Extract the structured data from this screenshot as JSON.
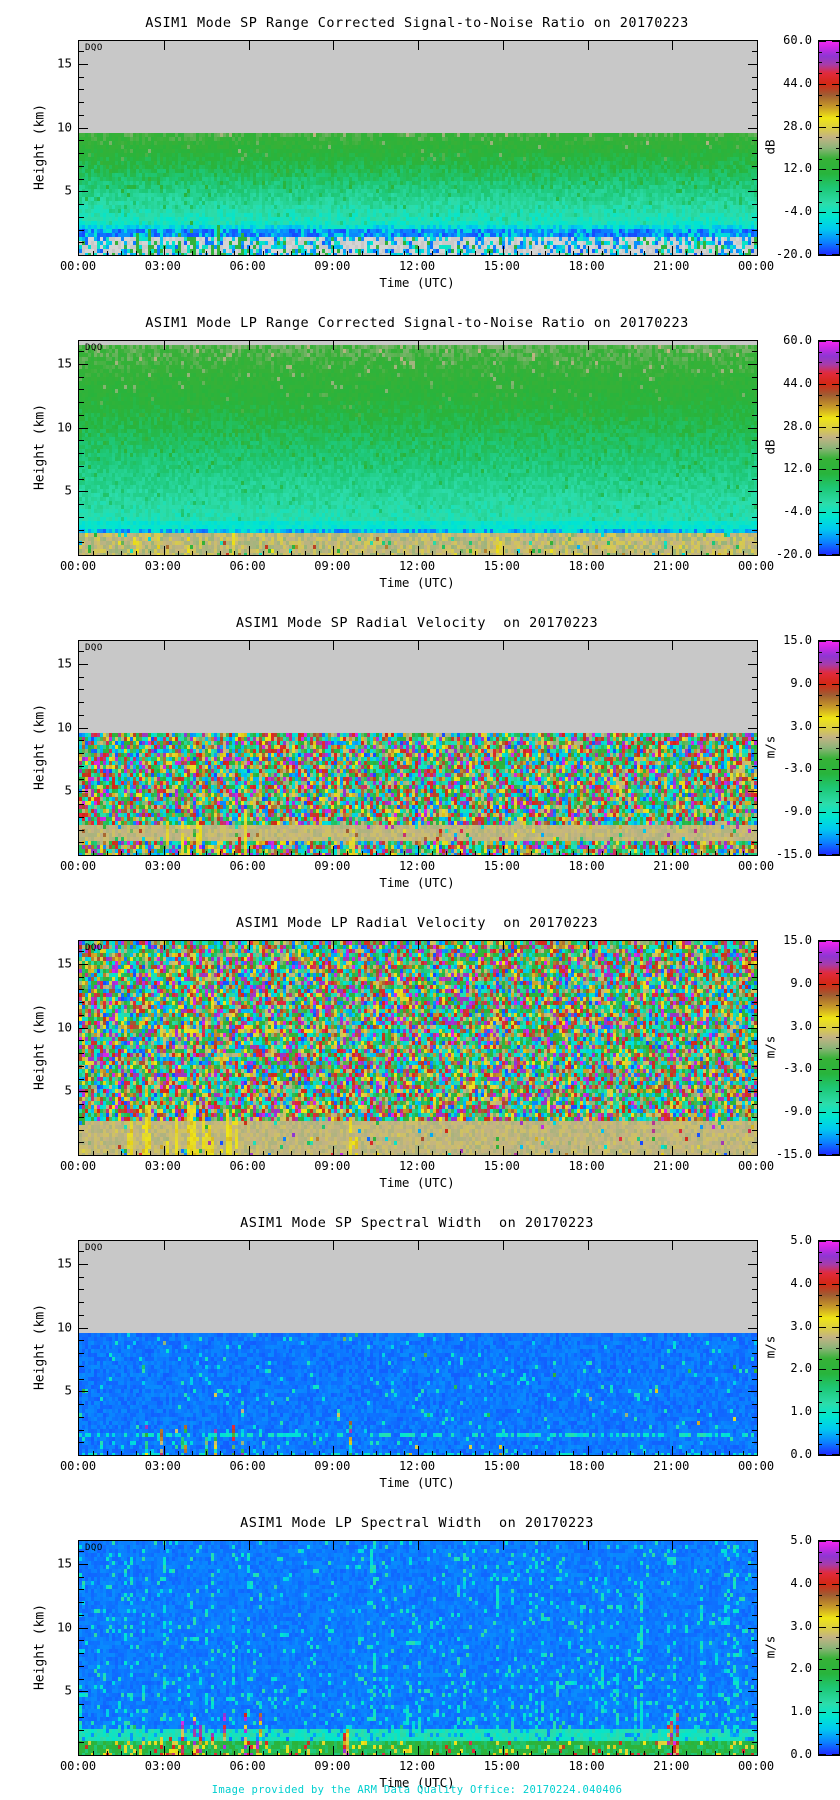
{
  "footer": {
    "credit": "Image provided by the ARM Data Quality Office: 20170224.040406",
    "color": "#00cfcf"
  },
  "shared": {
    "ylabel": "Height (km)",
    "xlabel": "Time (UTC)",
    "dqo": "DQO",
    "x_ticks": [
      "00:00",
      "03:00",
      "06:00",
      "09:00",
      "12:00",
      "15:00",
      "18:00",
      "21:00",
      "00:00"
    ],
    "y_ticks": [
      {
        "km": 15,
        "label": "15"
      },
      {
        "km": 10,
        "label": "10"
      },
      {
        "km": 5,
        "label": "5"
      }
    ],
    "y_max_km": 16.8,
    "nodata_gray": "#c8c8c8",
    "colormap_stops": [
      [
        0.0,
        "#1e28ff"
      ],
      [
        0.06,
        "#0a82ff"
      ],
      [
        0.12,
        "#00c8f0"
      ],
      [
        0.18,
        "#00e6d0"
      ],
      [
        0.24,
        "#2cdcaa"
      ],
      [
        0.31,
        "#1ec878"
      ],
      [
        0.38,
        "#28b43c"
      ],
      [
        0.45,
        "#37b137"
      ],
      [
        0.5,
        "#8cb478"
      ],
      [
        0.55,
        "#c3b384"
      ],
      [
        0.6,
        "#ddd23c"
      ],
      [
        0.64,
        "#f0e614"
      ],
      [
        0.69,
        "#c89c28"
      ],
      [
        0.75,
        "#a05a32"
      ],
      [
        0.8,
        "#d42814"
      ],
      [
        0.85,
        "#e12a3c"
      ],
      [
        0.89,
        "#a73caa"
      ],
      [
        0.93,
        "#8f35d4"
      ],
      [
        0.97,
        "#cd28e6"
      ],
      [
        1.0,
        "#f228f2"
      ]
    ]
  },
  "panels": [
    {
      "title": "ASIM1 Mode SP Range Corrected Signal-to-Noise Ratio on 20170223",
      "unit": "dB",
      "cbar_labels": [
        "60.0",
        "44.0",
        "28.0",
        "12.0",
        "-4.0",
        "-20.0"
      ],
      "paint": "snr_sp",
      "render": {
        "gray_above_km": 9.5,
        "grad_top_km": 9.5,
        "grad_bot_km": 2.4,
        "blue_band": [
          1.3,
          2.15
        ],
        "ground_band": [
          0,
          1.3
        ],
        "streak_hours": [
          [
            1.9,
            6.3,
            0.22
          ],
          [
            9.4,
            9.8,
            0.3
          ],
          [
            14.8,
            15.1,
            0.3
          ]
        ],
        "streak_min_km": 0.9,
        "streak_span_km": 2.4
      }
    },
    {
      "title": "ASIM1 Mode LP Range Corrected Signal-to-Noise Ratio on 20170223",
      "unit": "dB",
      "cbar_labels": [
        "60.0",
        "44.0",
        "28.0",
        "12.0",
        "-4.0",
        "-20.0"
      ],
      "paint": "snr_lp",
      "render": {
        "gray_top_km": 16.45,
        "grad_top_km": 16.4,
        "grad_bot_km": 2.6,
        "cyan_band": [
          2.1,
          2.6
        ],
        "blue_band": [
          1.7,
          2.1
        ],
        "tan_band": [
          0,
          1.7
        ],
        "streak_hours": [
          [
            0.9,
            5.6,
            0.3
          ],
          [
            14.7,
            15.0,
            0.4
          ]
        ],
        "streak_min_km": 0.6,
        "streak_span_km": 1.4
      }
    },
    {
      "title": "ASIM1 Mode SP Radial Velocity  on 20170223",
      "unit": "m/s",
      "cbar_labels": [
        "15.0",
        "9.0",
        "3.0",
        "-3.0",
        "-9.0",
        "-15.0"
      ],
      "paint": "vel_sp",
      "render": {
        "gray_above_km": 9.5,
        "tan_band": [
          0.95,
          2.35
        ],
        "streak_hours": [
          [
            1.9,
            6.3,
            0.22
          ],
          [
            9.4,
            9.9,
            0.25
          ]
        ],
        "streak_min_km": 1.0,
        "streak_span_km": 2.2
      }
    },
    {
      "title": "ASIM1 Mode LP Radial Velocity  on 20170223",
      "unit": "m/s",
      "cbar_labels": [
        "15.0",
        "9.0",
        "3.0",
        "-3.0",
        "-9.0",
        "-15.0"
      ],
      "paint": "vel_lp",
      "render": {
        "tan_band": [
          0,
          2.55
        ],
        "streak_hours": [
          [
            1.4,
            6.5,
            0.28
          ],
          [
            9.3,
            9.9,
            0.35
          ],
          [
            14.8,
            15.2,
            0.4
          ]
        ],
        "streak_min_km": 1.2,
        "streak_span_km": 3.0
      }
    },
    {
      "title": "ASIM1 Mode SP Spectral Width  on 20170223",
      "unit": "m/s",
      "cbar_labels": [
        "5.0",
        "4.0",
        "3.0",
        "2.0",
        "1.0",
        "0.0"
      ],
      "paint": "sw_sp",
      "render": {
        "gray_above_km": 9.5,
        "cyan_band": [
          1.35,
          1.8
        ],
        "streak_hours": [
          [
            2.3,
            6.2,
            0.3
          ],
          [
            9.4,
            9.8,
            0.35
          ],
          [
            14.9,
            15.2,
            0.35
          ]
        ],
        "streak_min_km": 0.5,
        "streak_span_km": 2.3
      }
    },
    {
      "title": "ASIM1 Mode LP Spectral Width  on 20170223",
      "unit": "m/s",
      "cbar_labels": [
        "5.0",
        "4.0",
        "3.0",
        "2.0",
        "1.0",
        "0.0"
      ],
      "paint": "sw_lp",
      "render": {
        "cyan_band": [
          1.15,
          2.0
        ],
        "ground_band": [
          0,
          1.15
        ],
        "streak_hours": [
          [
            2.3,
            6.5,
            0.28
          ],
          [
            9.3,
            10.1,
            0.3
          ],
          [
            14.2,
            14.7,
            0.2
          ],
          [
            20.7,
            21.3,
            0.3
          ]
        ],
        "streak_min_km": 0.8,
        "streak_span_km": 2.6
      }
    }
  ],
  "chart_data": [
    {
      "type": "heatmap",
      "title": "ASIM1 Mode SP Range Corrected Signal-to-Noise Ratio on 20170223",
      "xlabel": "Time (UTC)",
      "ylabel": "Height (km)",
      "x_range_hours": [
        0,
        24
      ],
      "x_ticks": [
        "00:00",
        "03:00",
        "06:00",
        "09:00",
        "12:00",
        "15:00",
        "18:00",
        "21:00",
        "00:00"
      ],
      "y_range_km": [
        0,
        16.8
      ],
      "y_ticks_km": [
        5,
        10,
        15
      ],
      "colorbar": {
        "unit": "dB",
        "range": [
          -20,
          60
        ],
        "ticks": [
          60.0,
          44.0,
          28.0,
          12.0,
          -4.0,
          -20.0
        ]
      },
      "features": [
        "no data (gray) above ~9.5 km",
        "SNR ~5-10 dB (green) near 9 km decreasing to cyan (~-8 dB) by 3 km",
        "dark blue band (~-18 dB) at 1.3-2.2 km",
        "gray/noise surface band below 1.3 km",
        "green plume echoes between 02:00 and 06:00 up to ~3 km"
      ]
    },
    {
      "type": "heatmap",
      "title": "ASIM1 Mode LP Range Corrected Signal-to-Noise Ratio on 20170223",
      "xlabel": "Time (UTC)",
      "ylabel": "Height (km)",
      "x_range_hours": [
        0,
        24
      ],
      "x_ticks": [
        "00:00",
        "03:00",
        "06:00",
        "09:00",
        "12:00",
        "15:00",
        "18:00",
        "21:00",
        "00:00"
      ],
      "y_range_km": [
        0,
        16.8
      ],
      "y_ticks_km": [
        5,
        10,
        15
      ],
      "colorbar": {
        "unit": "dB",
        "range": [
          -20,
          60
        ],
        "ticks": [
          60.0,
          44.0,
          28.0,
          12.0,
          -4.0,
          -20.0
        ]
      },
      "features": [
        "data over full height",
        "~8 dB green aloft grading to cyan below 4 km",
        "blue line near 1.9 km",
        "tan/khaki surface layer (~20 dB) below 1.7 km",
        "orange-yellow surface plumes 01:00-05:30"
      ]
    },
    {
      "type": "heatmap",
      "title": "ASIM1 Mode SP Radial Velocity  on 20170223",
      "xlabel": "Time (UTC)",
      "ylabel": "Height (km)",
      "x_range_hours": [
        0,
        24
      ],
      "x_ticks": [
        "00:00",
        "03:00",
        "06:00",
        "09:00",
        "12:00",
        "15:00",
        "18:00",
        "21:00",
        "00:00"
      ],
      "y_range_km": [
        0,
        16.8
      ],
      "y_ticks_km": [
        5,
        10,
        15
      ],
      "colorbar": {
        "unit": "m/s",
        "range": [
          -15,
          15
        ],
        "ticks": [
          15.0,
          9.0,
          3.0,
          -3.0,
          -9.0,
          -15.0
        ],
        "midpoint": 0
      },
      "features": [
        "no data (gray) above ~9.5 km",
        "uncorrelated rainbow velocity noise below 9.5 km",
        "near-zero (tan) band 1-2.3 km",
        "yellow (~+4 m/s) plumes 02:00-06:00"
      ]
    },
    {
      "type": "heatmap",
      "title": "ASIM1 Mode LP Radial Velocity  on 20170223",
      "xlabel": "Time (UTC)",
      "ylabel": "Height (km)",
      "x_range_hours": [
        0,
        24
      ],
      "x_ticks": [
        "00:00",
        "03:00",
        "06:00",
        "09:00",
        "12:00",
        "15:00",
        "18:00",
        "21:00",
        "00:00"
      ],
      "y_range_km": [
        0,
        16.8
      ],
      "y_ticks_km": [
        5,
        10,
        15
      ],
      "colorbar": {
        "unit": "m/s",
        "range": [
          -15,
          15
        ],
        "ticks": [
          15.0,
          9.0,
          3.0,
          -3.0,
          -9.0,
          -15.0
        ],
        "midpoint": 0
      },
      "features": [
        "rainbow velocity noise over full height",
        "near-zero (tan) layer below ~2.5 km",
        "yellow updraft plumes 01:30-06:30, near 09:30 and 15:00"
      ]
    },
    {
      "type": "heatmap",
      "title": "ASIM1 Mode SP Spectral Width  on 20170223",
      "xlabel": "Time (UTC)",
      "ylabel": "Height (km)",
      "x_range_hours": [
        0,
        24
      ],
      "y_range_km": [
        0,
        16.8
      ],
      "y_ticks_km": [
        5,
        10,
        15
      ],
      "x_ticks": [
        "00:00",
        "03:00",
        "06:00",
        "09:00",
        "12:00",
        "15:00",
        "18:00",
        "21:00",
        "00:00"
      ],
      "colorbar": {
        "unit": "m/s",
        "range": [
          0,
          5
        ],
        "ticks": [
          5.0,
          4.0,
          3.0,
          2.0,
          1.0,
          0.0
        ]
      },
      "features": [
        "no data (gray) above ~9.5 km",
        "spectral width ~0.2 m/s (blue) with sparse cyan speckles",
        "cyan speckled line near 1.5 km",
        "multicolor turbulent plumes 02:30-06:00, near 09:30 and 15:00"
      ]
    },
    {
      "type": "heatmap",
      "title": "ASIM1 Mode LP Spectral Width  on 20170223",
      "xlabel": "Time (UTC)",
      "ylabel": "Height (km)",
      "x_range_hours": [
        0,
        24
      ],
      "y_range_km": [
        0,
        16.8
      ],
      "y_ticks_km": [
        5,
        10,
        15
      ],
      "x_ticks": [
        "00:00",
        "03:00",
        "06:00",
        "09:00",
        "12:00",
        "15:00",
        "18:00",
        "21:00",
        "00:00"
      ],
      "colorbar": {
        "unit": "m/s",
        "range": [
          0,
          5
        ],
        "ticks": [
          5.0,
          4.0,
          3.0,
          2.0,
          1.0,
          0.0
        ]
      },
      "features": [
        "~0.2 m/s (blue) field with cyan vertical speckle streaks",
        "~1 m/s turquoise band 1.2-2 km",
        "green/yellow surface layer below 1.2 km",
        "red-magenta high-width spikes 02:30-06:30, ~09:30, ~14:30, ~21:00"
      ]
    }
  ]
}
